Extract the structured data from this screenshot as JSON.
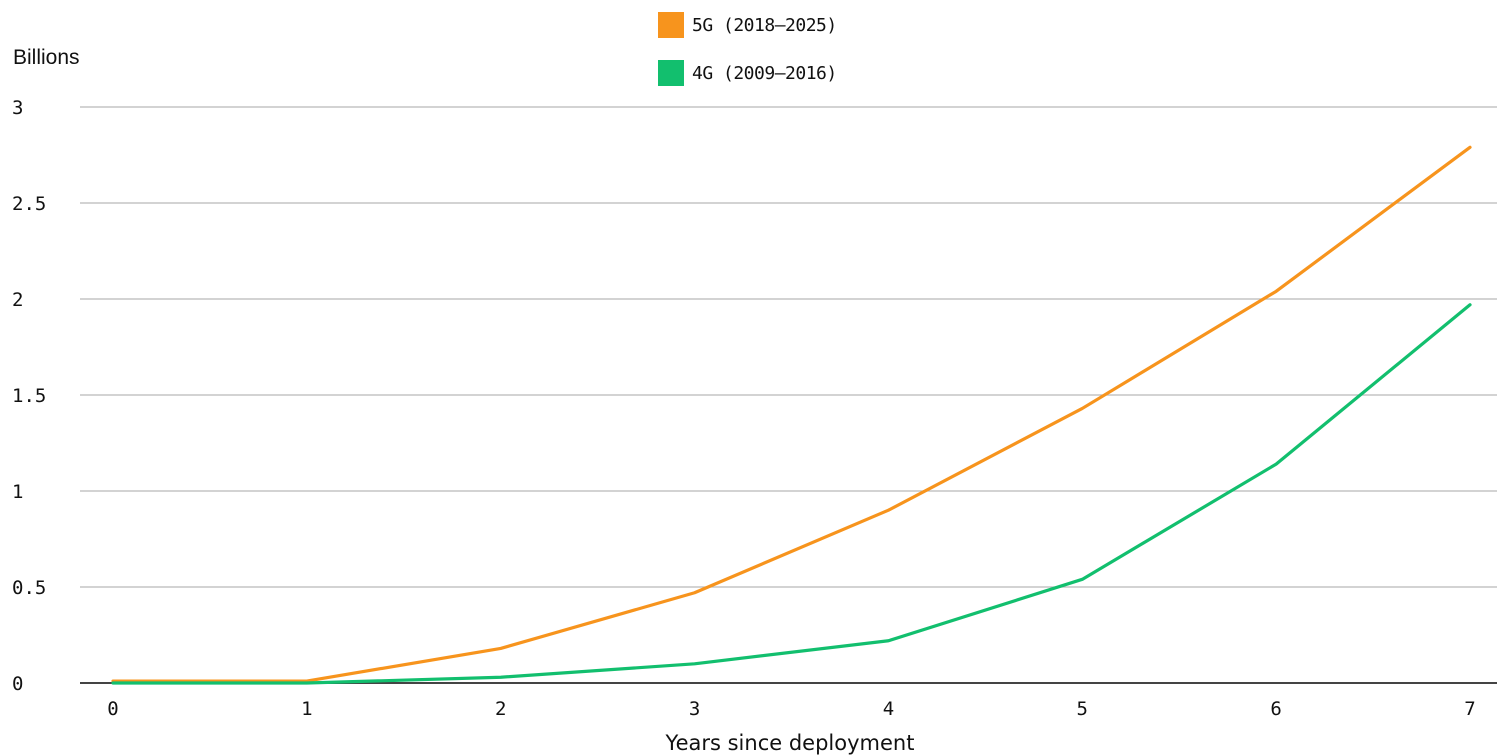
{
  "chart_data": {
    "type": "line",
    "title": "",
    "ylabel": "Billions",
    "xlabel": "Years since deployment",
    "x": [
      0,
      1,
      2,
      3,
      4,
      5,
      6,
      7
    ],
    "x_tick_labels": [
      "0",
      "1",
      "2",
      "3",
      "4",
      "5",
      "6",
      "7"
    ],
    "y_tick_labels": [
      "0",
      "0.5",
      "1",
      "1.5",
      "2",
      "2.5",
      "3"
    ],
    "y_ticks": [
      0,
      0.5,
      1,
      1.5,
      2,
      2.5,
      3
    ],
    "ylim": [
      0,
      3
    ],
    "xlim": [
      0,
      7
    ],
    "grid": true,
    "legend_position": "top-center",
    "series": [
      {
        "name": "5G (2018–2025)",
        "color": "#F7941D",
        "values": [
          0.01,
          0.01,
          0.18,
          0.47,
          0.9,
          1.43,
          2.04,
          2.79
        ]
      },
      {
        "name": "4G (2009–2016)",
        "color": "#12BF6E",
        "values": [
          0.0,
          0.0,
          0.03,
          0.1,
          0.22,
          0.54,
          1.14,
          1.97
        ]
      }
    ]
  }
}
